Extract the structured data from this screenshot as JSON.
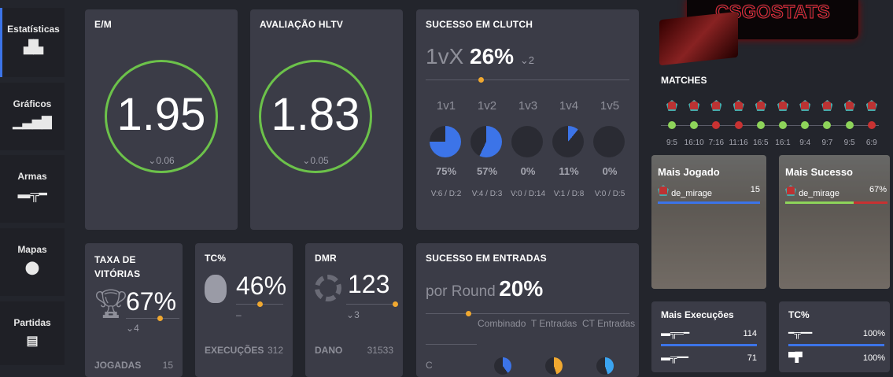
{
  "sidebar": {
    "items": [
      {
        "label": "Estatísticas",
        "icon": "bar-chart-icon"
      },
      {
        "label": "Gráficos",
        "icon": "signal-chart-icon"
      },
      {
        "label": "Armas",
        "icon": "rifle-icon"
      },
      {
        "label": "Mapas",
        "icon": "map-pin-icon"
      },
      {
        "label": "Partidas",
        "icon": "list-icon"
      }
    ]
  },
  "em": {
    "title": "E/M",
    "value": "1.95",
    "delta": "0.06"
  },
  "hltv": {
    "title": "AVALIAÇÃO HLTV",
    "value": "1.83",
    "delta": "0.05"
  },
  "clutch": {
    "title": "SUCESSO EM CLUTCH",
    "prefix": "1vX",
    "value": "26%",
    "delta": "2",
    "items": [
      {
        "label": "1v1",
        "pct": "75%",
        "frac": 0.75,
        "record": "V:6 / D:2"
      },
      {
        "label": "1v2",
        "pct": "57%",
        "frac": 0.57,
        "record": "V:4 / D:3"
      },
      {
        "label": "1v3",
        "pct": "0%",
        "frac": 0,
        "record": "V:0 / D:14"
      },
      {
        "label": "1v4",
        "pct": "11%",
        "frac": 0.11,
        "record": "V:1 / D:8"
      },
      {
        "label": "1v5",
        "pct": "0%",
        "frac": 0,
        "record": "V:0 / D:5"
      }
    ]
  },
  "winrate": {
    "title_1": "TAXA DE",
    "title_2": "VITÓRIAS",
    "value": "67%",
    "delta": "4",
    "row_label": "JOGADAS",
    "row_value": "15"
  },
  "hs": {
    "title": "TC%",
    "value": "46%",
    "delta": "–",
    "row_label": "EXECUÇÕES",
    "row_value": "312"
  },
  "adr": {
    "title": "DMR",
    "value": "123",
    "delta": "3",
    "row_label": "DANO",
    "row_value": "31533"
  },
  "entries": {
    "title": "SUCESSO EM ENTRADAS",
    "prefix": "por Round",
    "value": "20%",
    "cols": [
      "Combinado",
      "T Entradas",
      "CT Entradas"
    ],
    "row_label": "C"
  },
  "logo": {
    "text": "CSGOSTATS"
  },
  "matches": {
    "title": "MATCHES",
    "results": [
      {
        "score": "9:5",
        "win": true
      },
      {
        "score": "16:10",
        "win": true
      },
      {
        "score": "7:16",
        "win": false
      },
      {
        "score": "11:16",
        "win": false
      },
      {
        "score": "16:5",
        "win": true
      },
      {
        "score": "16:1",
        "win": true
      },
      {
        "score": "9:4",
        "win": true
      },
      {
        "score": "9:7",
        "win": true
      },
      {
        "score": "9:5",
        "win": true
      },
      {
        "score": "6:9",
        "win": false
      }
    ]
  },
  "most_played": {
    "title": "Mais Jogado",
    "map": "de_mirage",
    "value": "15"
  },
  "most_success": {
    "title": "Mais Sucesso",
    "map": "de_mirage",
    "value": "67%",
    "frac": 0.67
  },
  "most_kills": {
    "title": "Mais Execuções",
    "rows": [
      {
        "weapon": "ak47-icon",
        "value": "114"
      },
      {
        "weapon": "m4a1-icon",
        "value": "71"
      }
    ]
  },
  "hs_weapons": {
    "title": "TC%",
    "rows": [
      {
        "weapon": "famas-icon",
        "value": "100%"
      },
      {
        "weapon": "pistol-icon",
        "value": "100%"
      }
    ]
  },
  "colors": {
    "accent": "#3c74e8",
    "green": "#6cc24a",
    "red": "#c83232",
    "orange": "#f0a830"
  }
}
